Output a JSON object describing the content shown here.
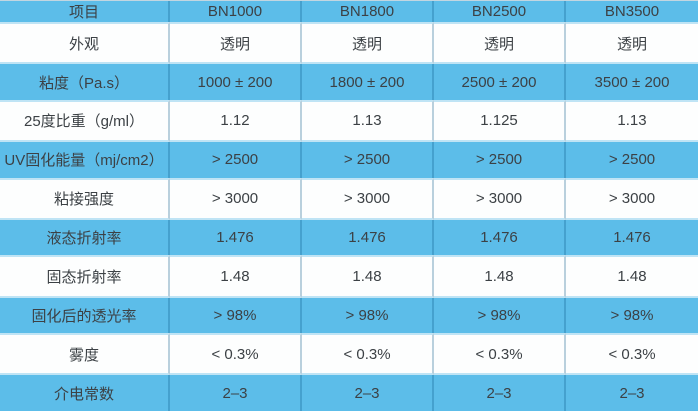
{
  "colors": {
    "row_blue": "#5cbde9",
    "row_white": "#fdfefe",
    "text": "#3c4145",
    "border_vertical": "rgba(10, 90, 135, 0.28)",
    "border_row": "#bfe4f5"
  },
  "table": {
    "header": {
      "item_label": "项目",
      "products": [
        "BN1000",
        "BN1800",
        "BN2500",
        "BN3500"
      ]
    },
    "rows": [
      {
        "label": "外观",
        "values": [
          "透明",
          "透明",
          "透明",
          "透明"
        ]
      },
      {
        "label": "粘度（Pa.s）",
        "values": [
          "1000 ± 200",
          "1800 ± 200",
          "2500 ± 200",
          "3500 ± 200"
        ]
      },
      {
        "label": "25度比重（g/ml）",
        "values": [
          "1.12",
          "1.13",
          "1.125",
          "1.13"
        ]
      },
      {
        "label": "UV固化能量（mj/cm2）",
        "values": [
          "> 2500",
          "> 2500",
          "> 2500",
          "> 2500"
        ]
      },
      {
        "label": "粘接强度",
        "values": [
          "> 3000",
          "> 3000",
          "> 3000",
          "> 3000"
        ]
      },
      {
        "label": "液态折射率",
        "values": [
          "1.476",
          "1.476",
          "1.476",
          "1.476"
        ]
      },
      {
        "label": "固态折射率",
        "values": [
          "1.48",
          "1.48",
          "1.48",
          "1.48"
        ]
      },
      {
        "label": "固化后的透光率",
        "values": [
          "> 98%",
          "> 98%",
          "> 98%",
          "> 98%"
        ]
      },
      {
        "label": "雾度",
        "values": [
          "< 0.3%",
          "< 0.3%",
          "< 0.3%",
          "< 0.3%"
        ]
      },
      {
        "label": "介电常数",
        "values": [
          "2–3",
          "2–3",
          "2–3",
          "2–3"
        ]
      }
    ]
  }
}
